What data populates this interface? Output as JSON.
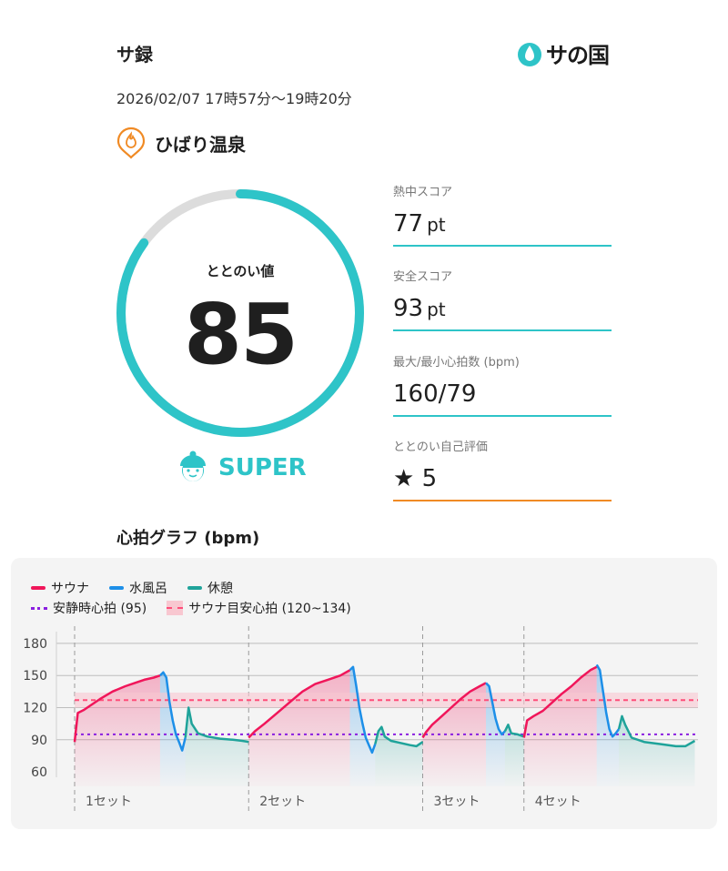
{
  "header": {
    "title": "サ録",
    "brand": "サの国",
    "date_range": "2026/02/07 17時57分〜19時20分"
  },
  "facility": {
    "name": "ひばり温泉",
    "icon": "flame-pin-icon"
  },
  "totonoi": {
    "label": "ととのい値",
    "value": "85",
    "score": 85,
    "max": 100,
    "level": "SUPER",
    "level_icon": "helmet-face-icon"
  },
  "stats": [
    {
      "label": "熱中スコア",
      "value": "77",
      "unit": "pt"
    },
    {
      "label": "安全スコア",
      "value": "93",
      "unit": "pt"
    },
    {
      "label": "最大/最小心拍数 (bpm)",
      "value": "160/79",
      "unit": ""
    },
    {
      "label": "ととのい自己評価",
      "value": "★ 5",
      "unit": ""
    }
  ],
  "colors": {
    "accent": "#2ec4c8",
    "sauna": "#f0165a",
    "water": "#1d8fe8",
    "rest": "#1fa39a",
    "resting_hr": "#8a1fe0",
    "target": "#ff4d79",
    "rating_line": "#f08a24"
  },
  "graph": {
    "title": "心拍グラフ (bpm)",
    "legend": {
      "sauna": "サウナ",
      "water": "水風呂",
      "rest": "休憩",
      "resting_hr": "安静時心拍 (95)",
      "target": "サウナ目安心拍 (120~134)"
    },
    "set_labels": [
      "1セット",
      "2セット",
      "3セット",
      "4セット"
    ]
  },
  "chart_data": {
    "type": "line",
    "ylabel": "",
    "yticks": [
      180,
      150,
      120,
      90,
      60
    ],
    "ylim": [
      55,
      185
    ],
    "resting_hr": 95,
    "target_range": [
      120,
      134
    ],
    "target_line": 127,
    "sets": [
      {
        "label": "1セット",
        "sauna": [
          [
            0,
            88
          ],
          [
            1,
            115
          ],
          [
            3,
            118
          ],
          [
            5,
            122
          ],
          [
            8,
            128
          ],
          [
            12,
            135
          ],
          [
            16,
            140
          ],
          [
            19,
            143
          ],
          [
            22,
            146
          ],
          [
            25,
            148
          ],
          [
            27,
            150
          ]
        ],
        "water": [
          [
            27,
            150
          ],
          [
            28,
            153
          ],
          [
            29,
            148
          ],
          [
            30,
            125
          ],
          [
            31,
            108
          ],
          [
            32,
            95
          ],
          [
            33,
            88
          ],
          [
            34,
            80
          ],
          [
            35,
            92
          ]
        ],
        "rest": [
          [
            35,
            92
          ],
          [
            36,
            120
          ],
          [
            37,
            105
          ],
          [
            39,
            96
          ],
          [
            42,
            93
          ],
          [
            46,
            91
          ],
          [
            50,
            90
          ],
          [
            53,
            89
          ],
          [
            55,
            88
          ]
        ]
      },
      {
        "label": "2セット",
        "sauna": [
          [
            55,
            92
          ],
          [
            57,
            98
          ],
          [
            60,
            105
          ],
          [
            64,
            115
          ],
          [
            68,
            125
          ],
          [
            72,
            135
          ],
          [
            76,
            142
          ],
          [
            80,
            146
          ],
          [
            84,
            150
          ],
          [
            87,
            155
          ]
        ],
        "water": [
          [
            87,
            155
          ],
          [
            88,
            158
          ],
          [
            89,
            140
          ],
          [
            90,
            120
          ],
          [
            91,
            105
          ],
          [
            92,
            92
          ],
          [
            93,
            85
          ],
          [
            94,
            78
          ],
          [
            95,
            86
          ]
        ],
        "rest": [
          [
            95,
            86
          ],
          [
            96,
            98
          ],
          [
            97,
            102
          ],
          [
            98,
            93
          ],
          [
            100,
            89
          ],
          [
            103,
            87
          ],
          [
            106,
            85
          ],
          [
            108,
            84
          ],
          [
            110,
            88
          ]
        ]
      },
      {
        "label": "3セット",
        "sauna": [
          [
            110,
            92
          ],
          [
            111,
            97
          ],
          [
            113,
            104
          ],
          [
            116,
            112
          ],
          [
            119,
            120
          ],
          [
            122,
            128
          ],
          [
            125,
            135
          ],
          [
            128,
            140
          ],
          [
            130,
            143
          ]
        ],
        "water": [
          [
            130,
            143
          ],
          [
            131,
            140
          ],
          [
            132,
            125
          ],
          [
            133,
            110
          ],
          [
            134,
            100
          ],
          [
            135,
            95
          ],
          [
            136,
            98
          ]
        ],
        "rest": [
          [
            136,
            98
          ],
          [
            137,
            104
          ],
          [
            138,
            96
          ],
          [
            140,
            95
          ],
          [
            142,
            93
          ]
        ]
      },
      {
        "label": "4セット",
        "sauna": [
          [
            142,
            92
          ],
          [
            143,
            108
          ],
          [
            145,
            112
          ],
          [
            148,
            117
          ],
          [
            151,
            125
          ],
          [
            154,
            133
          ],
          [
            157,
            140
          ],
          [
            160,
            148
          ],
          [
            163,
            155
          ],
          [
            165,
            158
          ]
        ],
        "water": [
          [
            165,
            160
          ],
          [
            166,
            155
          ],
          [
            167,
            135
          ],
          [
            168,
            115
          ],
          [
            169,
            100
          ],
          [
            170,
            93
          ],
          [
            171,
            96
          ],
          [
            172,
            100
          ]
        ],
        "rest": [
          [
            172,
            100
          ],
          [
            173,
            112
          ],
          [
            174,
            104
          ],
          [
            176,
            92
          ],
          [
            180,
            88
          ],
          [
            185,
            86
          ],
          [
            190,
            84
          ],
          [
            193,
            84
          ],
          [
            196,
            89
          ]
        ]
      }
    ]
  }
}
